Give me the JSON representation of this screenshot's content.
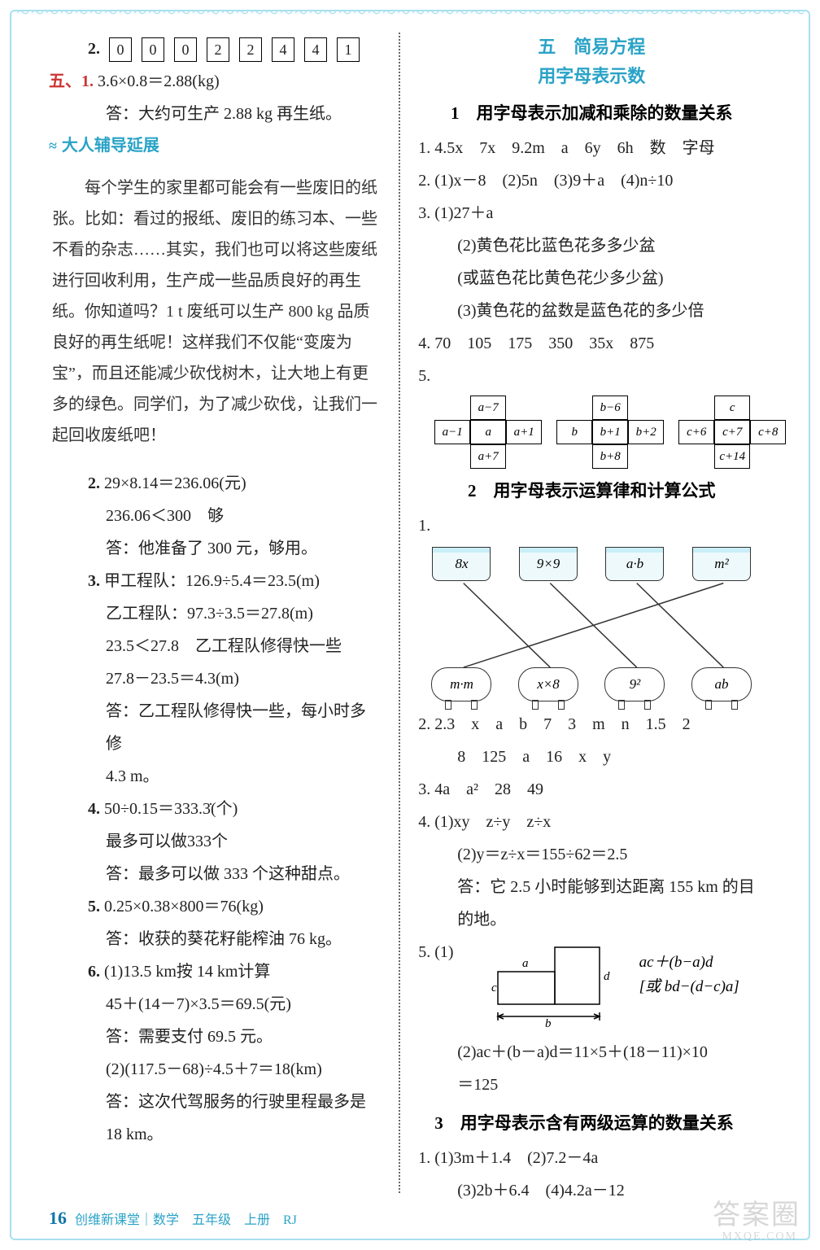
{
  "wave_chars": "～～～～～～～～～～～～～～～～～～～～～～～～～～～～～～～～～～～～～～～～～～～～～～～～～～～～～～～～～～～～～～～～～～～～～～～～～～～～～～～～～～～～～～",
  "left": {
    "q2_label": "2.",
    "q2_digits": [
      "0",
      "0",
      "0",
      "2",
      "2",
      "4",
      "4",
      "1"
    ],
    "q5_label": "五、1.",
    "q5_eq": "3.6×0.8＝2.88(kg)",
    "q5_ans": "答：大约可生产 2.88 kg 再生纸。",
    "tutor_title": "大人辅导延展",
    "tutor_body": "每个学生的家里都可能会有一些废旧的纸张。比如：看过的报纸、废旧的练习本、一些不看的杂志……其实，我们也可以将这些废纸进行回收利用，生产成一些品质良好的再生纸。你知道吗？1 t 废纸可以生产 800 kg 品质良好的再生纸呢！这样我们不仅能“变废为宝”，而且还能减少砍伐树木，让大地上有更多的绿色。同学们，为了减少砍伐，让我们一起回收废纸吧！",
    "items": [
      {
        "n": "2.",
        "lines": [
          "29×8.14＝236.06(元)",
          "236.06＜300　够",
          "答：他准备了 300 元，够用。"
        ]
      },
      {
        "n": "3.",
        "lines": [
          "甲工程队：126.9÷5.4＝23.5(m)",
          "乙工程队：97.3÷3.5＝27.8(m)",
          "23.5＜27.8　乙工程队修得快一些",
          "27.8－23.5＝4.3(m)",
          "答：乙工程队修得快一些，每小时多修",
          "4.3 m。"
        ]
      },
      {
        "n": "4.",
        "lines": [
          "50÷0.15＝333.3̇(个)",
          "最多可以做333个",
          "答：最多可以做 333 个这种甜点。"
        ]
      },
      {
        "n": "5.",
        "lines": [
          "0.25×0.38×800＝76(kg)",
          "答：收获的葵花籽能榨油 76 kg。"
        ]
      },
      {
        "n": "6.",
        "lines": [
          "(1)13.5 km按 14 km计算",
          "45＋(14－7)×3.5＝69.5(元)",
          "答：需要支付 69.5 元。",
          "(2)(117.5－68)÷4.5＋7＝18(km)",
          "答：这次代驾服务的行驶里程最多是",
          "18 km。"
        ]
      }
    ]
  },
  "right": {
    "chapter": "五　简易方程",
    "chapter_sub": "用字母表示数",
    "s1_title": "1　用字母表示加减和乘除的数量关系",
    "s1": {
      "l1": "1. 4.5x　7x　9.2m　a　6y　6h　数　字母",
      "l2": "2. (1)x－8　(2)5n　(3)9＋a　(4)n÷10",
      "l3a": "3. (1)27＋a",
      "l3b": "(2)黄色花比蓝色花多多少盆",
      "l3c": "(或蓝色花比黄色花少多少盆)",
      "l3d": "(3)黄色花的盆数是蓝色花的多少倍",
      "l4": "4. 70　105　175　350　35x　875",
      "l5": "5."
    },
    "cross_a": {
      "top": "a−7",
      "left": "a−1",
      "mid": "a",
      "right": "a+1",
      "bot": "a+7"
    },
    "cross_b": {
      "top": "b−6",
      "left": "b",
      "mid": "b+1",
      "right": "b+2",
      "bot": "b+8"
    },
    "cross_c": {
      "top": "c",
      "left": "c+6",
      "mid": "c+7",
      "right": "c+8",
      "bot": "c+14"
    },
    "s2_title": "2　用字母表示运算律和计算公式",
    "s2_lead": "1.",
    "match_top": [
      "8x",
      "9×9",
      "a·b",
      "m²"
    ],
    "match_bot": [
      "m·m",
      "x×8",
      "9²",
      "ab"
    ],
    "match_edges": [
      [
        0,
        1
      ],
      [
        1,
        2
      ],
      [
        2,
        3
      ],
      [
        3,
        0
      ]
    ],
    "s2_l2": "2. 2.3　x　a　b　7　3　m　n　1.5　2",
    "s2_l2b": "8　125　a　16　x　y",
    "s2_l3": "3. 4a　a²　28　49",
    "s2_l4a": "4. (1)xy　z÷y　z÷x",
    "s2_l4b": "(2)y＝z÷x＝155÷62＝2.5",
    "s2_l4c": "答：它 2.5 小时能够到达距离 155 km 的目",
    "s2_l4d": "的地。",
    "s2_l5": "5. (1)",
    "geo": {
      "a": "a",
      "b": "b",
      "c": "c",
      "d": "d"
    },
    "s2_formula1": "ac＋(b−a)d",
    "s2_formula2": "[或 bd−(d−c)a]",
    "s2_l5b": "(2)ac＋(b－a)d＝11×5＋(18－11)×10",
    "s2_l5c": "＝125",
    "s3_title": "3　用字母表示含有两级运算的数量关系",
    "s3_l1": "1. (1)3m＋1.4　(2)7.2－4a",
    "s3_l2": "(3)2b＋6.4　(4)4.2a－12"
  },
  "footer": {
    "page": "16",
    "text": "创维新课堂｜数学　五年级　上册　RJ"
  },
  "watermark": "答案圈",
  "watermark_sub": "MXQE.COM",
  "colors": {
    "accent": "#2aa3c7",
    "frame": "#a8e0f0",
    "text": "#222222"
  }
}
